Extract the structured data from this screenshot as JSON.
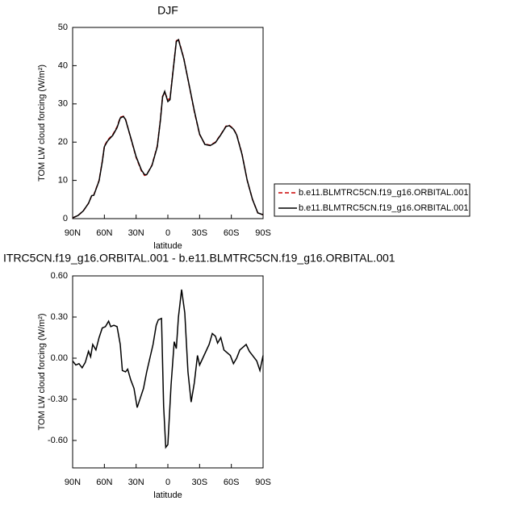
{
  "chart_data": [
    {
      "type": "line",
      "title": "DJF",
      "x_label": "latitude",
      "y_label": "TOM LW cloud forcing (W/m²)",
      "x": [
        90,
        85,
        80,
        75,
        72,
        70,
        65,
        62,
        60,
        57,
        52,
        48,
        45,
        42,
        40,
        35,
        30,
        25,
        22,
        20,
        15,
        10,
        7,
        5,
        3,
        0,
        -2,
        -5,
        -8,
        -10,
        -15,
        -20,
        -25,
        -30,
        -35,
        -40,
        -45,
        -50,
        -55,
        -58,
        -62,
        -65,
        -70,
        -75,
        -80,
        -85,
        -90
      ],
      "series": [
        {
          "name": "b.e11.BLMTRC5CN.f19_g16.ORBITAL.001",
          "color": "#cc0000",
          "dash": true,
          "values": [
            0.2,
            0.8,
            2,
            4,
            6,
            6.2,
            10,
            15,
            19,
            20.5,
            22,
            24,
            26.5,
            26.8,
            26,
            21,
            16,
            12.5,
            11.3,
            11.5,
            14,
            19,
            26,
            32,
            33,
            31.2,
            31.3,
            39,
            46.5,
            47,
            42,
            35,
            28,
            22,
            19.5,
            19.2,
            20,
            22,
            24.2,
            24.4,
            23.5,
            22,
            17,
            10,
            5,
            1.5,
            1
          ]
        },
        {
          "name": "b.e11.BLMTRC5CN.f19_g16.ORBITAL.001",
          "color": "#000000",
          "dash": false,
          "values": [
            0.2,
            0.8,
            2,
            4,
            6,
            6.1,
            9.9,
            14.8,
            18.8,
            20.3,
            21.8,
            23.8,
            26.3,
            26.7,
            25.9,
            21.1,
            16.2,
            12.7,
            11.5,
            11.5,
            13.9,
            18.8,
            25.8,
            31.8,
            33.3,
            30.6,
            31.1,
            38.8,
            46.3,
            46.8,
            41.9,
            35.1,
            28.2,
            22.1,
            19.4,
            19.1,
            19.9,
            21.9,
            24.1,
            24.3,
            23.4,
            21.9,
            16.9,
            10,
            5,
            1.5,
            1
          ]
        }
      ],
      "xlim": [
        90,
        -90
      ],
      "ylim": [
        0,
        50
      ],
      "xticks": [
        {
          "value": 90,
          "label": "90N"
        },
        {
          "value": 60,
          "label": "60N"
        },
        {
          "value": 30,
          "label": "30N"
        },
        0,
        {
          "value": -30,
          "label": "30S"
        },
        {
          "value": -60,
          "label": "60S"
        },
        {
          "value": -90,
          "label": "90S"
        }
      ],
      "yticks": [
        0,
        10,
        20,
        30,
        40,
        50
      ],
      "legend": "right"
    },
    {
      "type": "line",
      "title": "ITRC5CN.f19_g16.ORBITAL.001 - b.e11.BLMTRC5CN.f19_g16.ORBITAL.001",
      "x_label": "latitude",
      "y_label": "TOM LW cloud forcing (W/m²)",
      "x": [
        90,
        87,
        84,
        81,
        78,
        75,
        73,
        71,
        68,
        65,
        62,
        59,
        56,
        54,
        51,
        48,
        45,
        43,
        40,
        38,
        35,
        32,
        29,
        26,
        23,
        20,
        17,
        14,
        11,
        9,
        6,
        4,
        2,
        0,
        -3,
        -6,
        -8,
        -10,
        -13,
        -16,
        -19,
        -22,
        -25,
        -28,
        -30,
        -33,
        -36,
        -39,
        -42,
        -45,
        -47,
        -50,
        -53,
        -56,
        -59,
        -62,
        -65,
        -68,
        -71,
        -74,
        -77,
        -80,
        -84,
        -87,
        -90
      ],
      "values": [
        -0.02,
        -0.05,
        -0.04,
        -0.07,
        -0.03,
        0.05,
        0.01,
        0.1,
        0.06,
        0.15,
        0.22,
        0.23,
        0.27,
        0.23,
        0.24,
        0.23,
        0.1,
        -0.09,
        -0.1,
        -0.08,
        -0.16,
        -0.22,
        -0.36,
        -0.29,
        -0.22,
        -0.1,
        0.0,
        0.1,
        0.24,
        0.28,
        0.29,
        -0.35,
        -0.65,
        -0.63,
        -0.2,
        0.12,
        0.07,
        0.3,
        0.5,
        0.33,
        -0.1,
        -0.32,
        -0.18,
        0.02,
        -0.05,
        0.0,
        0.05,
        0.1,
        0.18,
        0.16,
        0.11,
        0.15,
        0.06,
        0.04,
        0.02,
        -0.04,
        0.0,
        0.06,
        0.08,
        0.1,
        0.05,
        0.02,
        -0.02,
        -0.09,
        0.02
      ],
      "color": "#000000",
      "xlim": [
        90,
        -90
      ],
      "ylim": [
        -0.8,
        0.6
      ],
      "xticks": [
        {
          "value": 90,
          "label": "90N"
        },
        {
          "value": 60,
          "label": "60N"
        },
        {
          "value": 30,
          "label": "30N"
        },
        0,
        {
          "value": -30,
          "label": "30S"
        },
        {
          "value": -60,
          "label": "60S"
        },
        {
          "value": -90,
          "label": "90S"
        }
      ],
      "yticks": [
        {
          "value": -0.6,
          "label": "-0.60"
        },
        {
          "value": -0.3,
          "label": "-0.30"
        },
        {
          "value": 0,
          "label": "0.00"
        },
        {
          "value": 0.3,
          "label": "0.30"
        },
        {
          "value": 0.6,
          "label": "0.60"
        }
      ]
    }
  ]
}
